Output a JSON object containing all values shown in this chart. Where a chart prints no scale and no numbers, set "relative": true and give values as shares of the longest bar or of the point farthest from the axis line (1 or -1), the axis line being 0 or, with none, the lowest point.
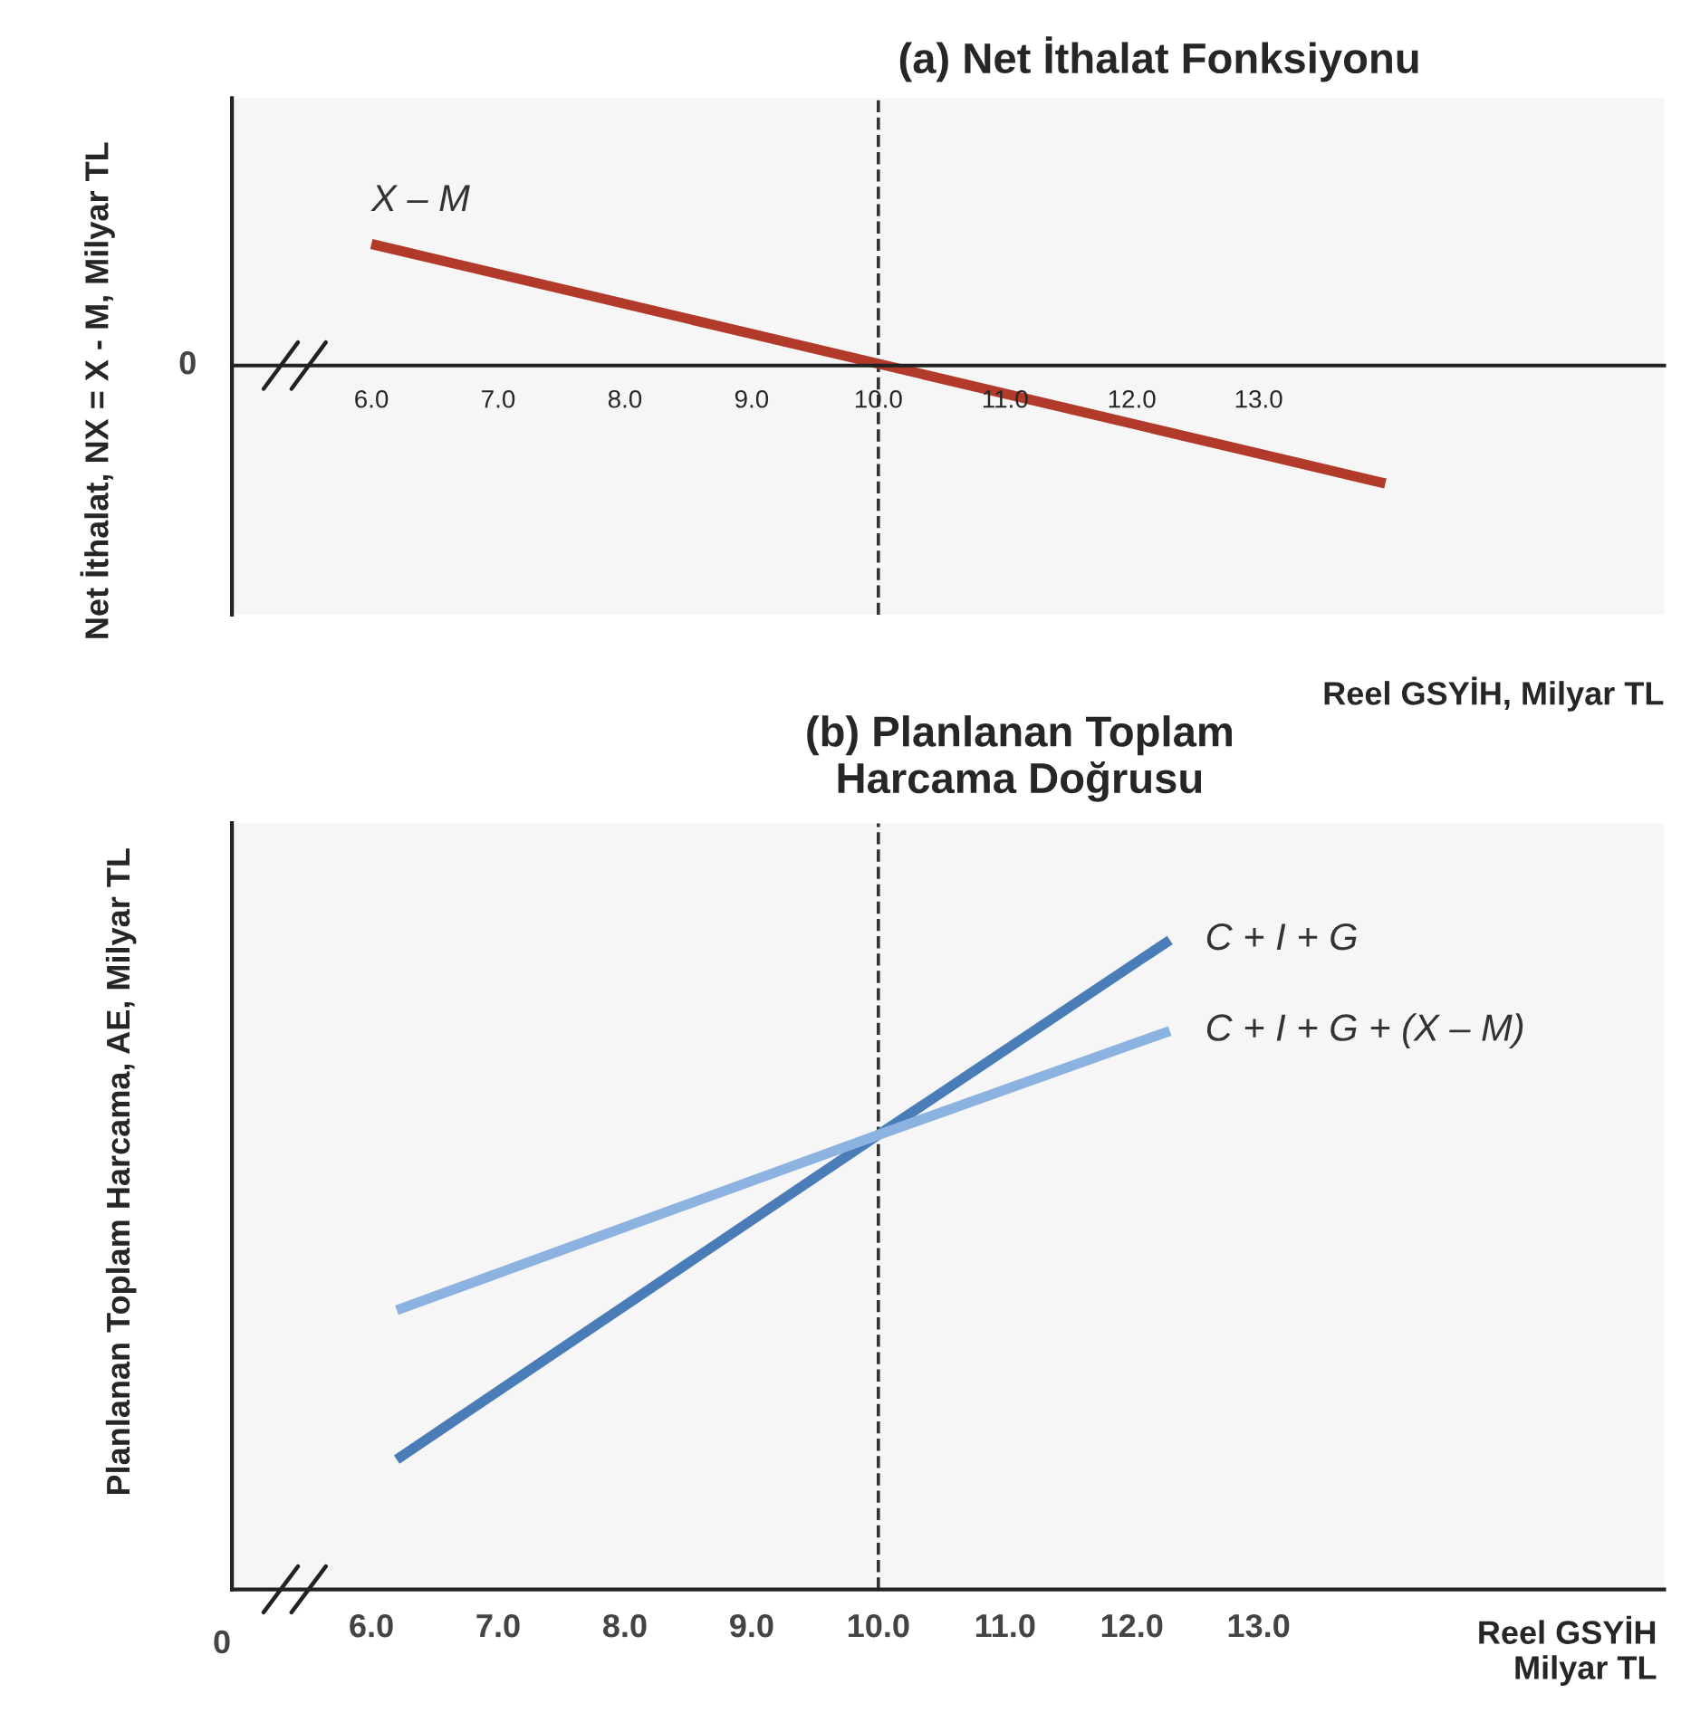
{
  "chart_data": [
    {
      "type": "line",
      "title": "(a) Net İthalat Fonksiyonu",
      "xlabel": "Reel GSYİH, Milyar TL",
      "ylabel": "Net İthalat, NX = X - M, Milyar TL",
      "relative": true,
      "xlim": [
        4.9,
        16.2
      ],
      "xticks": [
        {
          "value": 6,
          "label": "6.0"
        },
        {
          "value": 7,
          "label": "7.0"
        },
        {
          "value": 8,
          "label": "8.0"
        },
        {
          "value": 9,
          "label": "9.0"
        },
        {
          "value": 10,
          "label": "10.0"
        },
        {
          "value": 11,
          "label": "11.0"
        },
        {
          "value": 12,
          "label": "12.0"
        },
        {
          "value": 13,
          "label": "13.0"
        }
      ],
      "series": [
        {
          "name": "X – M",
          "color": "#b23a2a",
          "x": [
            6.0,
            14.0
          ],
          "values": [
            1,
            -0.97
          ]
        }
      ],
      "ref_lines": [
        {
          "axis": "x",
          "value": 10,
          "line_style": "dashed",
          "color": "#333333"
        }
      ],
      "annotations": [
        "0"
      ],
      "grid": false,
      "legend": false,
      "line_style": "solid",
      "marker": "none"
    },
    {
      "type": "line",
      "title": "(b) Planlanan Toplam\nHarcama Doğrusu",
      "xlabel": "Reel GSYİH\nMilyar TL",
      "ylabel": "Planlanan Toplam Harcama, AE, Milyar TL",
      "relative": true,
      "xlim": [
        4.9,
        16.2
      ],
      "xticks": [
        {
          "value": 6,
          "label": "6.0"
        },
        {
          "value": 7,
          "label": "7.0"
        },
        {
          "value": 8,
          "label": "8.0"
        },
        {
          "value": 9,
          "label": "9.0"
        },
        {
          "value": 10,
          "label": "10.0"
        },
        {
          "value": 11,
          "label": "11.0"
        },
        {
          "value": 12,
          "label": "12.0"
        },
        {
          "value": 13,
          "label": "13.0"
        }
      ],
      "series": [
        {
          "name": "C + I + G",
          "color": "#4a7cb8",
          "x": [
            6.2,
            10.0,
            12.3
          ],
          "values": [
            0.2,
            0.7,
            1
          ]
        },
        {
          "name": "C + I + G + (X – M)",
          "color": "#8cb2e0",
          "x": [
            6.2,
            10.0,
            12.3
          ],
          "values": [
            0.43,
            0.7,
            0.86
          ]
        }
      ],
      "ref_lines": [
        {
          "axis": "x",
          "value": 10,
          "line_style": "dashed",
          "color": "#333333"
        }
      ],
      "annotations": [
        "0"
      ],
      "grid": false,
      "legend": false,
      "line_style": "solid",
      "marker": "none"
    }
  ]
}
